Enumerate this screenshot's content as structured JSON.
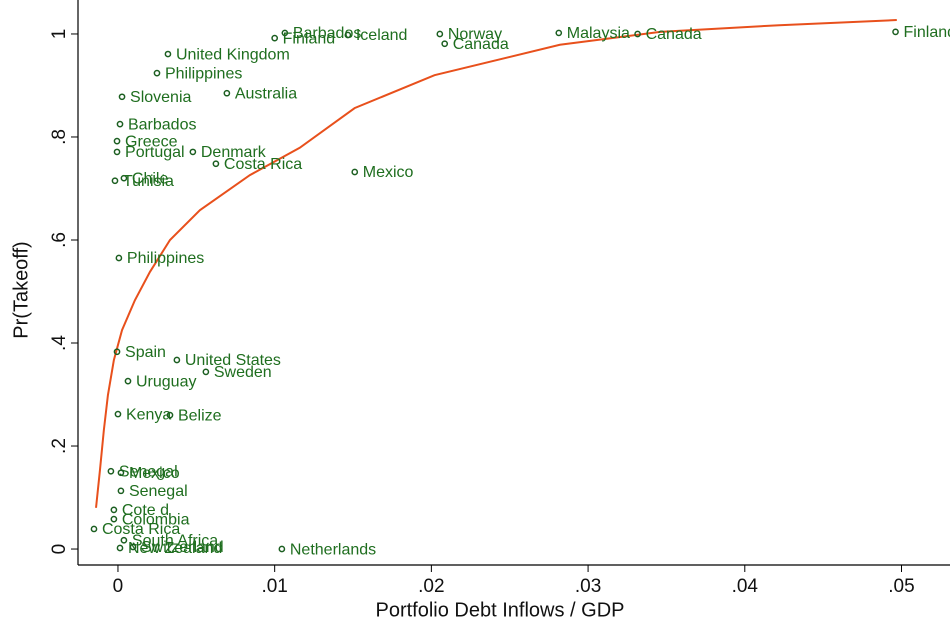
{
  "chart_data": {
    "type": "scatter",
    "x_label": "Portfolio Debt Inflows / GDP",
    "y_label": "Pr(Takeoff)",
    "xlim": [
      -0.00255,
      0.0515
    ],
    "ylim": [
      -0.031,
      1.031
    ],
    "xticks": [
      0,
      {
        "value": 0.01,
        "label": ".01"
      },
      {
        "value": 0.02,
        "label": ".02"
      },
      {
        "value": 0.03,
        "label": ".03"
      },
      {
        "value": 0.04,
        "label": ".04"
      },
      {
        "value": 0.05,
        "label": ".05"
      }
    ],
    "yticks": [
      0,
      {
        "value": 0.2,
        "label": ".2"
      },
      {
        "value": 0.4,
        "label": ".4"
      },
      {
        "value": 0.6,
        "label": ".6"
      },
      {
        "value": 0.8,
        "label": ".8"
      },
      1
    ],
    "marker_color": "#1b5e20",
    "label_color": "#1f6e1f",
    "x": [
      0.01065,
      0.01,
      0.01467,
      0.02054,
      0.02085,
      0.02813,
      0.03316,
      0.04962,
      0.00319,
      0.00249,
      0.00026,
      0.00695,
      0.00013,
      -6e-05,
      -6e-05,
      0.00478,
      0.00625,
      0.01511,
      0.00038,
      -0.00019,
      6e-05,
      -6e-05,
      0.00376,
      0.00561,
      0.00064,
      0.0,
      0.00332,
      -0.00045,
      0.00019,
      0.00019,
      -0.00026,
      -0.00026,
      -0.00153,
      0.00038,
      0.00013,
      0.00096,
      0.01046
    ],
    "values": [
      1.002,
      0.992,
      0.998,
      1.0,
      0.981,
      1.002,
      1.0,
      1.004,
      0.961,
      0.924,
      0.878,
      0.885,
      0.825,
      0.792,
      0.771,
      0.771,
      0.748,
      0.732,
      0.72,
      0.715,
      0.565,
      0.383,
      0.367,
      0.344,
      0.326,
      0.262,
      0.26,
      0.151,
      0.148,
      0.113,
      0.076,
      0.058,
      0.039,
      0.017,
      0.002,
      0.004,
      0.0
    ],
    "point_labels": [
      "Barbados",
      "Finland",
      "Iceland",
      "Norway",
      "Canada",
      "Malaysia",
      "Canada",
      "Finland",
      "United Kingdom",
      "Philippines",
      "Slovenia",
      "Australia",
      "Barbados",
      "Greece",
      "Portugal",
      "Denmark",
      "Costa Rica",
      "Mexico",
      "Chile",
      "Tunisia",
      "Philippines",
      "Spain",
      "United States",
      "Sweden",
      "Uruguay",
      "Kenya",
      "Belize",
      "Senegal",
      "Mexico",
      "Senegal",
      "Cote d",
      "Colombia",
      "Costa Rica",
      "South Africa",
      "New Zealand",
      "Switzerland",
      "Netherlands"
    ],
    "fit": {
      "color": "#e8501c",
      "x": [
        -0.0014,
        -0.00115,
        -0.0009,
        -0.00064,
        -0.00026,
        0.00026,
        0.00108,
        0.00204,
        0.00332,
        0.00523,
        0.00842,
        0.0116,
        0.0151,
        0.0202,
        0.0282,
        0.0346,
        0.0422,
        0.0497
      ],
      "values": [
        0.08,
        0.153,
        0.231,
        0.299,
        0.367,
        0.425,
        0.483,
        0.538,
        0.6,
        0.658,
        0.726,
        0.779,
        0.856,
        0.92,
        0.979,
        1.004,
        1.017,
        1.027
      ]
    }
  }
}
